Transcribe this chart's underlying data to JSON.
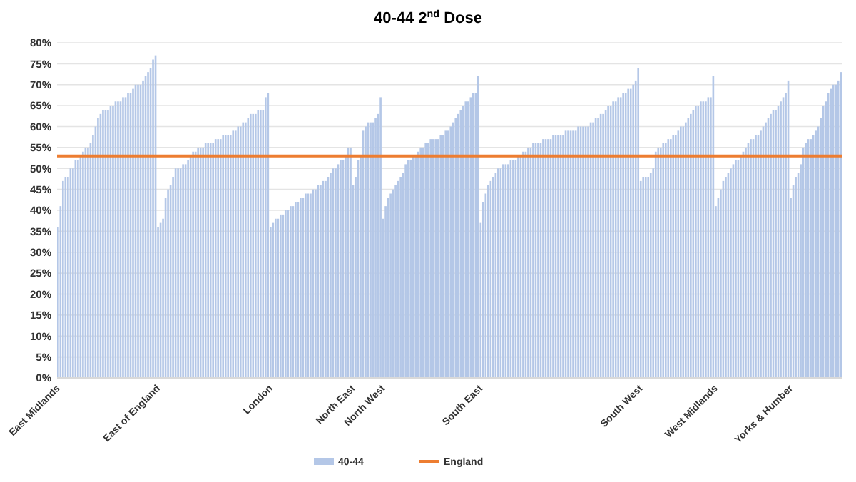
{
  "chart_data": {
    "type": "bar",
    "title": "40-44 2$^{nd}$ Dose",
    "categories": [
      "East Midlands",
      null,
      null,
      null,
      null,
      null,
      null,
      null,
      null,
      null,
      null,
      null,
      null,
      null,
      null,
      null,
      null,
      null,
      null,
      null,
      null,
      null,
      null,
      null,
      null,
      null,
      null,
      null,
      null,
      null,
      null,
      null,
      null,
      null,
      null,
      null,
      null,
      null,
      null,
      null,
      "East of England",
      null,
      null,
      null,
      null,
      null,
      null,
      null,
      null,
      null,
      null,
      null,
      null,
      null,
      null,
      null,
      null,
      null,
      null,
      null,
      null,
      null,
      null,
      null,
      null,
      null,
      null,
      null,
      null,
      null,
      null,
      null,
      null,
      null,
      null,
      null,
      null,
      null,
      null,
      null,
      null,
      null,
      null,
      null,
      null,
      "London",
      null,
      null,
      null,
      null,
      null,
      null,
      null,
      null,
      null,
      null,
      null,
      null,
      null,
      null,
      null,
      null,
      null,
      null,
      null,
      null,
      null,
      null,
      null,
      null,
      null,
      null,
      null,
      null,
      null,
      null,
      null,
      null,
      "North East",
      null,
      null,
      null,
      null,
      null,
      null,
      null,
      null,
      null,
      null,
      null,
      "North West",
      null,
      null,
      null,
      null,
      null,
      null,
      null,
      null,
      null,
      null,
      null,
      null,
      null,
      null,
      null,
      null,
      null,
      null,
      null,
      null,
      null,
      null,
      null,
      null,
      null,
      null,
      null,
      null,
      null,
      null,
      null,
      null,
      null,
      null,
      null,
      null,
      null,
      null,
      "South East",
      null,
      null,
      null,
      null,
      null,
      null,
      null,
      null,
      null,
      null,
      null,
      null,
      null,
      null,
      null,
      null,
      null,
      null,
      null,
      null,
      null,
      null,
      null,
      null,
      null,
      null,
      null,
      null,
      null,
      null,
      null,
      null,
      null,
      null,
      null,
      null,
      null,
      null,
      null,
      null,
      null,
      null,
      null,
      null,
      null,
      null,
      null,
      null,
      null,
      null,
      null,
      null,
      null,
      null,
      null,
      null,
      null,
      null,
      null,
      null,
      null,
      null,
      null,
      "South West",
      null,
      null,
      null,
      null,
      null,
      null,
      null,
      null,
      null,
      null,
      null,
      null,
      null,
      null,
      null,
      null,
      null,
      null,
      null,
      null,
      null,
      null,
      null,
      null,
      null,
      null,
      null,
      null,
      null,
      "West Midlands",
      null,
      null,
      null,
      null,
      null,
      null,
      null,
      null,
      null,
      null,
      null,
      null,
      null,
      null,
      null,
      null,
      null,
      null,
      null,
      null,
      null,
      null,
      null,
      null,
      null,
      null,
      null,
      null,
      null,
      "Yorks & Humber",
      null,
      null,
      null,
      null,
      null,
      null,
      null,
      null,
      null,
      null,
      null,
      null,
      null,
      null,
      null,
      null,
      null,
      null,
      null,
      null
    ],
    "series": [
      {
        "name": "40-44",
        "color": "#b4c7e7",
        "values": [
          36,
          41,
          47,
          48,
          48,
          50,
          50,
          52,
          52,
          53,
          54,
          55,
          55,
          56,
          58,
          60,
          62,
          63,
          64,
          64,
          64,
          65,
          65,
          66,
          66,
          66,
          67,
          67,
          68,
          68,
          69,
          70,
          70,
          70,
          71,
          72,
          73,
          74,
          76,
          77,
          36,
          37,
          38,
          43,
          45,
          46,
          48,
          50,
          50,
          50,
          51,
          51,
          52,
          53,
          54,
          54,
          55,
          55,
          55,
          56,
          56,
          56,
          56,
          57,
          57,
          57,
          58,
          58,
          58,
          58,
          59,
          59,
          60,
          60,
          61,
          61,
          62,
          63,
          63,
          63,
          64,
          64,
          64,
          67,
          68,
          36,
          37,
          38,
          38,
          39,
          39,
          40,
          40,
          41,
          41,
          42,
          42,
          43,
          43,
          44,
          44,
          44,
          45,
          45,
          46,
          46,
          47,
          47,
          48,
          49,
          50,
          50,
          51,
          52,
          52,
          53,
          55,
          55,
          46,
          48,
          52,
          53,
          59,
          60,
          61,
          61,
          61,
          62,
          63,
          67,
          38,
          41,
          43,
          44,
          45,
          46,
          47,
          48,
          49,
          51,
          52,
          52,
          53,
          53,
          54,
          55,
          55,
          56,
          56,
          57,
          57,
          57,
          57,
          58,
          58,
          59,
          59,
          60,
          61,
          62,
          63,
          64,
          65,
          66,
          66,
          67,
          68,
          68,
          72,
          37,
          42,
          44,
          46,
          47,
          48,
          49,
          50,
          50,
          51,
          51,
          51,
          52,
          52,
          52,
          53,
          53,
          54,
          54,
          55,
          55,
          56,
          56,
          56,
          56,
          57,
          57,
          57,
          57,
          58,
          58,
          58,
          58,
          58,
          59,
          59,
          59,
          59,
          59,
          60,
          60,
          60,
          60,
          60,
          61,
          61,
          62,
          62,
          63,
          63,
          64,
          65,
          65,
          66,
          66,
          67,
          67,
          68,
          68,
          69,
          69,
          70,
          71,
          74,
          47,
          48,
          48,
          48,
          49,
          50,
          54,
          55,
          55,
          56,
          56,
          57,
          57,
          58,
          58,
          59,
          60,
          60,
          61,
          62,
          63,
          64,
          65,
          65,
          66,
          66,
          66,
          67,
          67,
          72,
          41,
          43,
          45,
          47,
          48,
          49,
          50,
          51,
          52,
          52,
          53,
          54,
          55,
          56,
          57,
          57,
          58,
          58,
          59,
          60,
          61,
          62,
          63,
          64,
          64,
          65,
          66,
          67,
          68,
          71,
          43,
          46,
          48,
          49,
          51,
          55,
          56,
          57,
          57,
          58,
          59,
          60,
          62,
          65,
          66,
          68,
          69,
          70,
          70,
          71,
          73
        ]
      }
    ],
    "ref_lines": [
      {
        "axis": "y",
        "value": 53,
        "label": "England",
        "color": "#ed7d31"
      }
    ],
    "ylim": [
      0,
      80
    ],
    "yticks": [
      {
        "value": 0,
        "label": "0%"
      },
      {
        "value": 5,
        "label": "5%"
      },
      {
        "value": 10,
        "label": "10%"
      },
      {
        "value": 15,
        "label": "15%"
      },
      {
        "value": 20,
        "label": "20%"
      },
      {
        "value": 25,
        "label": "25%"
      },
      {
        "value": 30,
        "label": "30%"
      },
      {
        "value": 35,
        "label": "35%"
      },
      {
        "value": 40,
        "label": "40%"
      },
      {
        "value": 45,
        "label": "45%"
      },
      {
        "value": 50,
        "label": "50%"
      },
      {
        "value": 55,
        "label": "55%"
      },
      {
        "value": 60,
        "label": "60%"
      },
      {
        "value": 65,
        "label": "65%"
      },
      {
        "value": 70,
        "label": "70%"
      },
      {
        "value": 75,
        "label": "75%"
      },
      {
        "value": 80,
        "label": "80%"
      }
    ],
    "grid": "y",
    "legend": "bottom"
  }
}
